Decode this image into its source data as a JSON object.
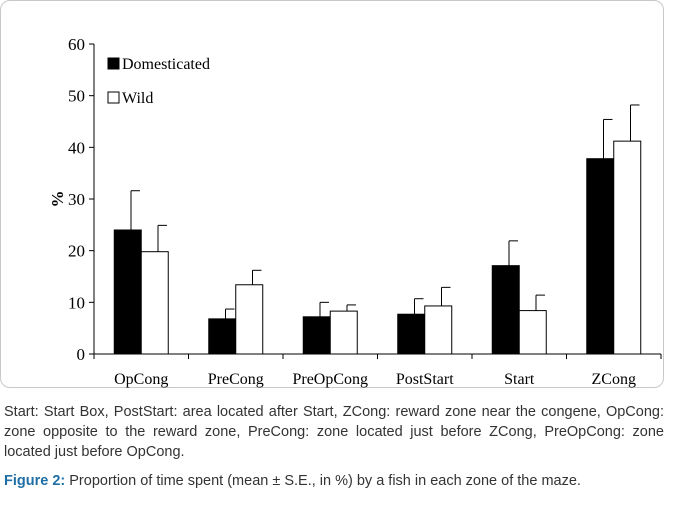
{
  "chart_data": {
    "type": "bar",
    "categories": [
      "OpCong",
      "PreCong",
      "PreOpCong",
      "PostStart",
      "Start",
      "ZCong"
    ],
    "series": [
      {
        "name": "Domesticated",
        "color": "#000000",
        "values": [
          24,
          6.8,
          7.2,
          7.7,
          17.1,
          37.8
        ],
        "errors": [
          7.6,
          1.9,
          2.8,
          3.0,
          4.8,
          7.6
        ]
      },
      {
        "name": "Wild",
        "color": "#ffffff",
        "values": [
          19.8,
          13.4,
          8.3,
          9.3,
          8.4,
          41.2
        ],
        "errors": [
          5.1,
          2.8,
          1.2,
          3.6,
          3.0,
          7.0
        ]
      }
    ],
    "ylabel": "%",
    "xlabel": "",
    "ylim": [
      0,
      60
    ],
    "yticks": [
      0,
      10,
      20,
      30,
      40,
      50,
      60
    ],
    "error_bars": "mean ± S.E.",
    "legend_position": "top-left",
    "grid": false
  },
  "caption": {
    "note": "Start: Start Box, PostStart: area located after Start, ZCong: reward zone near the congene, OpCong: zone opposite to the reward zone, PreCong: zone located just before ZCong, PreOpCong: zone located just before OpCong.",
    "figure_label": "Figure 2:",
    "figure_text": " Proportion of time spent (mean ± S.E., in %) by a fish in each zone of the maze.",
    "label_color": "#1f6ea5"
  }
}
